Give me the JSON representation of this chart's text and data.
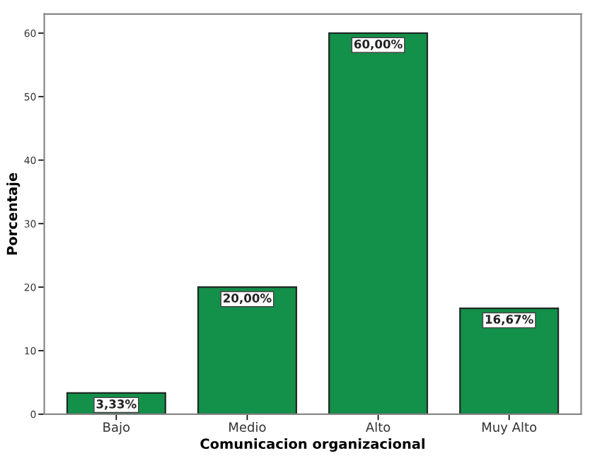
{
  "chart_data": {
    "type": "bar",
    "xlabel": "Comunicacion organizacional",
    "ylabel": "Porcentaje",
    "categories": [
      "Bajo",
      "Medio",
      "Alto",
      "Muy Alto"
    ],
    "values": [
      3.33,
      20.0,
      60.0,
      16.67
    ],
    "value_labels": [
      "3,33%",
      "20,00%",
      "60,00%",
      "16,67%"
    ],
    "color": "#13904a",
    "ylim": [
      0,
      63
    ],
    "yticks": [
      0,
      10,
      20,
      30,
      40,
      50,
      60
    ],
    "grid": false,
    "legend": false
  }
}
